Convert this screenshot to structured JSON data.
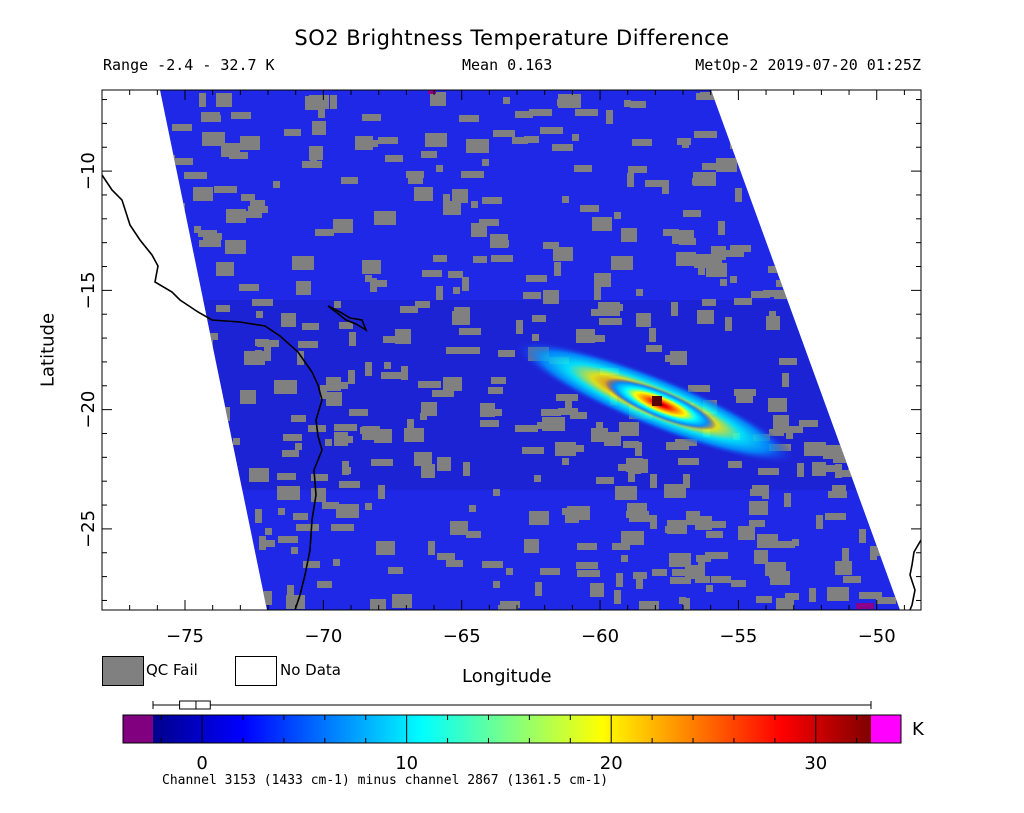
{
  "title": "SO2 Brightness Temperature Difference",
  "range_text": "Range -2.4 - 32.7 K",
  "mean_text": "Mean 0.163",
  "satellite_text": "MetOp-2 2019-07-20 01:25Z",
  "axes": {
    "xlabel": "Longitude",
    "ylabel": "Latitude",
    "x_ticks": [
      "−75",
      "−70",
      "−65",
      "−60",
      "−55",
      "−50"
    ],
    "y_ticks": [
      "−10",
      "−15",
      "−20",
      "−25"
    ],
    "x_range": [
      -78.0,
      -48.4
    ],
    "y_range": [
      -28.4,
      -6.6
    ]
  },
  "legend": {
    "qc_fail_label": "QC Fail",
    "no_data_label": "No Data",
    "qc_fail_color": "#808080",
    "no_data_color": "#ffffff"
  },
  "colorbar": {
    "unit": "K",
    "ticks": [
      "0",
      "10",
      "20",
      "30"
    ],
    "range": [
      -3.9,
      34.2
    ],
    "under_color": "#800080",
    "over_color": "#ff00ff",
    "colors": [
      "#00008b",
      "#0000ff",
      "#0080ff",
      "#00ffff",
      "#80ff80",
      "#ffff00",
      "#ff8000",
      "#ff0000",
      "#800000"
    ],
    "boxplot": {
      "min": -2.4,
      "q1": -1.1,
      "median": -0.3,
      "q3": 0.4,
      "max": 32.7
    }
  },
  "caption": "Channel 3153 (1433 cm-1) minus channel 2867 (1361.5 cm-1)",
  "swath": {
    "field_color": "#1e28e6",
    "background_color": "#ffffff",
    "qc_fail_color": "#808080"
  },
  "plume": {
    "description_color_peak": "#8b0000",
    "center_lon": -58.0,
    "center_lat": -19.5,
    "peak_value_k": 32.7
  }
}
